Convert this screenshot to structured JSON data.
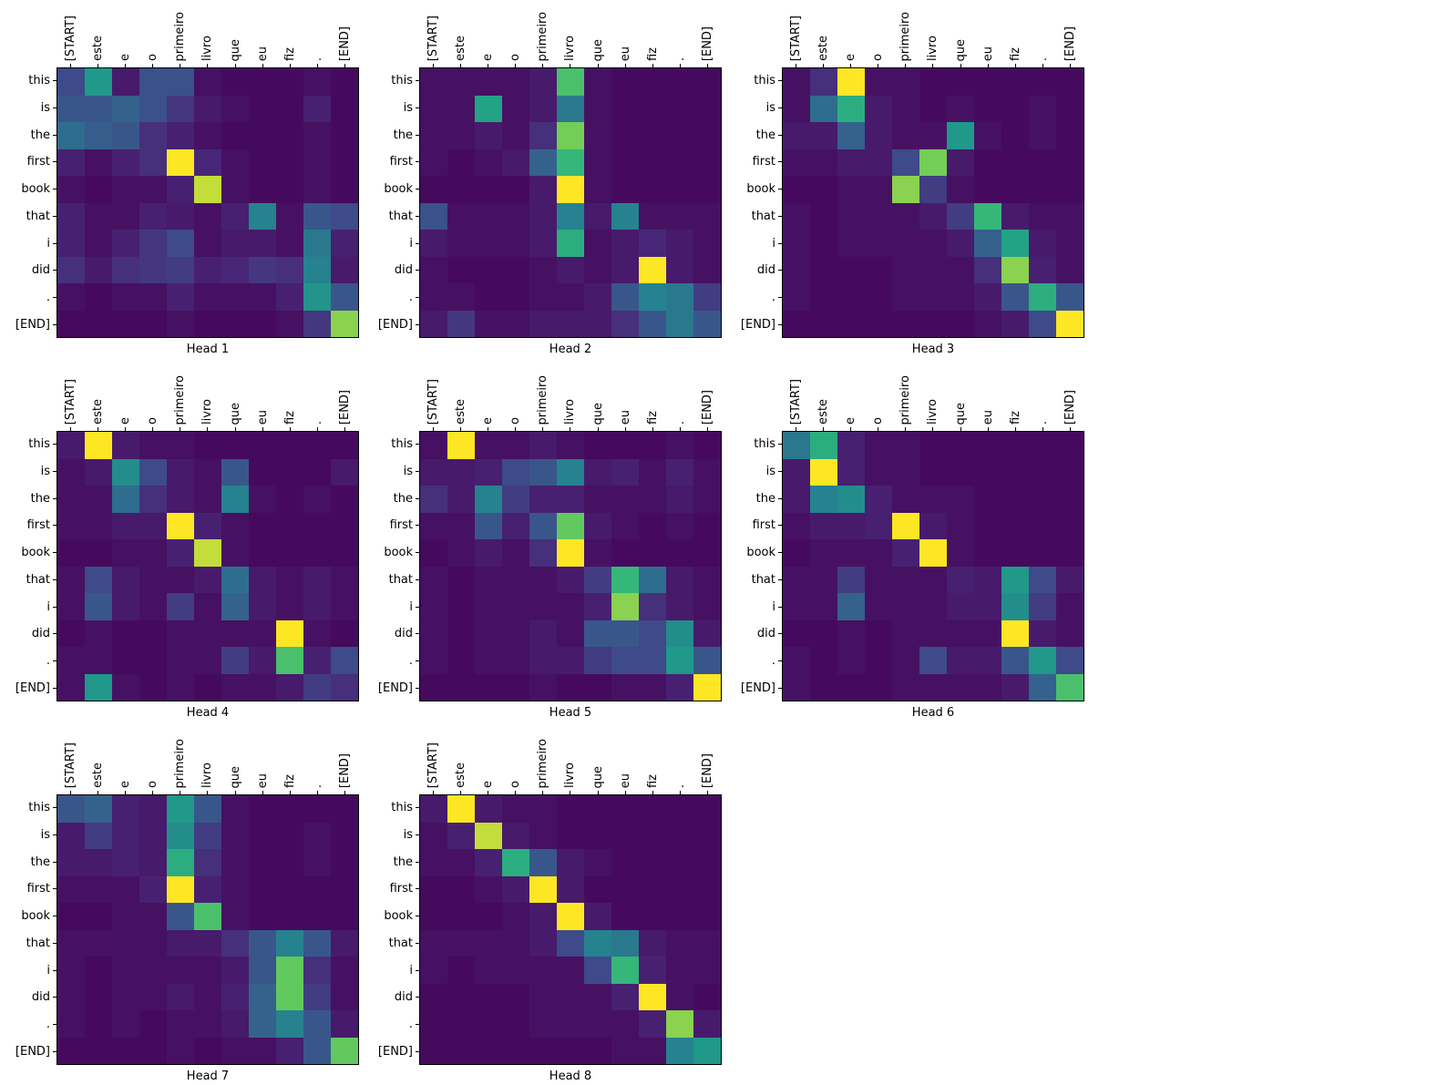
{
  "figure": {
    "background": "#ffffff",
    "axis_color": "#000000"
  },
  "chart_data": {
    "type": "heatmap",
    "subtype": "attention-heads-grid",
    "colormap": "viridis",
    "vmin": 0,
    "vmax": 1,
    "grid_rows": 2,
    "grid_cols": 4,
    "x_labels": [
      "[START]",
      "este",
      "e",
      "o",
      "primeiro",
      "livro",
      "que",
      "eu",
      "fiz",
      ".",
      "[END]"
    ],
    "y_labels": [
      "this",
      "is",
      "the",
      "first",
      "book",
      "that",
      "i",
      "did",
      ".",
      "[END]"
    ],
    "heads": [
      {
        "title": "Head 1",
        "values": [
          [
            0.25,
            0.6,
            0.08,
            0.28,
            0.28,
            0.05,
            0.03,
            0.03,
            0.03,
            0.05,
            0.03
          ],
          [
            0.3,
            0.3,
            0.35,
            0.28,
            0.18,
            0.08,
            0.05,
            0.03,
            0.03,
            0.1,
            0.03
          ],
          [
            0.4,
            0.33,
            0.3,
            0.15,
            0.1,
            0.05,
            0.03,
            0.03,
            0.03,
            0.05,
            0.03
          ],
          [
            0.1,
            0.05,
            0.1,
            0.15,
            1.0,
            0.12,
            0.05,
            0.03,
            0.03,
            0.05,
            0.03
          ],
          [
            0.05,
            0.03,
            0.05,
            0.05,
            0.1,
            0.95,
            0.05,
            0.03,
            0.03,
            0.05,
            0.03
          ],
          [
            0.1,
            0.05,
            0.05,
            0.1,
            0.08,
            0.05,
            0.1,
            0.5,
            0.05,
            0.3,
            0.25
          ],
          [
            0.1,
            0.05,
            0.1,
            0.18,
            0.25,
            0.05,
            0.08,
            0.08,
            0.05,
            0.45,
            0.1
          ],
          [
            0.15,
            0.08,
            0.15,
            0.18,
            0.2,
            0.1,
            0.12,
            0.18,
            0.15,
            0.5,
            0.08
          ],
          [
            0.05,
            0.03,
            0.05,
            0.05,
            0.1,
            0.05,
            0.05,
            0.05,
            0.1,
            0.58,
            0.3
          ],
          [
            0.03,
            0.03,
            0.03,
            0.03,
            0.05,
            0.03,
            0.03,
            0.03,
            0.05,
            0.18,
            0.9
          ]
        ]
      },
      {
        "title": "Head 2",
        "values": [
          [
            0.05,
            0.05,
            0.05,
            0.05,
            0.08,
            0.8,
            0.05,
            0.03,
            0.03,
            0.03,
            0.03
          ],
          [
            0.05,
            0.05,
            0.65,
            0.05,
            0.08,
            0.45,
            0.05,
            0.03,
            0.03,
            0.03,
            0.03
          ],
          [
            0.05,
            0.05,
            0.08,
            0.05,
            0.15,
            0.88,
            0.05,
            0.03,
            0.03,
            0.03,
            0.03
          ],
          [
            0.05,
            0.03,
            0.05,
            0.08,
            0.35,
            0.75,
            0.05,
            0.03,
            0.03,
            0.03,
            0.03
          ],
          [
            0.03,
            0.03,
            0.03,
            0.03,
            0.08,
            1.0,
            0.05,
            0.03,
            0.03,
            0.03,
            0.03
          ],
          [
            0.28,
            0.05,
            0.05,
            0.05,
            0.08,
            0.5,
            0.08,
            0.5,
            0.05,
            0.05,
            0.05
          ],
          [
            0.08,
            0.05,
            0.05,
            0.05,
            0.08,
            0.7,
            0.05,
            0.08,
            0.12,
            0.08,
            0.05
          ],
          [
            0.05,
            0.03,
            0.03,
            0.03,
            0.05,
            0.08,
            0.05,
            0.08,
            1.0,
            0.08,
            0.05
          ],
          [
            0.05,
            0.05,
            0.03,
            0.03,
            0.05,
            0.05,
            0.08,
            0.3,
            0.5,
            0.45,
            0.2
          ],
          [
            0.08,
            0.18,
            0.05,
            0.05,
            0.08,
            0.08,
            0.08,
            0.15,
            0.3,
            0.45,
            0.3
          ]
        ]
      },
      {
        "title": "Head 3",
        "values": [
          [
            0.05,
            0.15,
            1.0,
            0.05,
            0.05,
            0.03,
            0.03,
            0.03,
            0.03,
            0.03,
            0.03
          ],
          [
            0.05,
            0.4,
            0.7,
            0.08,
            0.05,
            0.03,
            0.05,
            0.03,
            0.03,
            0.05,
            0.03
          ],
          [
            0.08,
            0.08,
            0.35,
            0.08,
            0.05,
            0.05,
            0.6,
            0.05,
            0.03,
            0.05,
            0.03
          ],
          [
            0.05,
            0.05,
            0.08,
            0.08,
            0.25,
            0.88,
            0.08,
            0.03,
            0.03,
            0.03,
            0.03
          ],
          [
            0.03,
            0.03,
            0.05,
            0.05,
            0.9,
            0.2,
            0.05,
            0.03,
            0.03,
            0.03,
            0.03
          ],
          [
            0.05,
            0.03,
            0.05,
            0.05,
            0.05,
            0.08,
            0.2,
            0.75,
            0.08,
            0.05,
            0.05
          ],
          [
            0.05,
            0.03,
            0.05,
            0.05,
            0.05,
            0.05,
            0.08,
            0.35,
            0.65,
            0.08,
            0.05
          ],
          [
            0.05,
            0.03,
            0.03,
            0.03,
            0.05,
            0.05,
            0.05,
            0.15,
            0.9,
            0.1,
            0.05
          ],
          [
            0.05,
            0.03,
            0.03,
            0.03,
            0.05,
            0.05,
            0.05,
            0.08,
            0.3,
            0.7,
            0.3
          ],
          [
            0.03,
            0.03,
            0.03,
            0.03,
            0.03,
            0.03,
            0.03,
            0.05,
            0.08,
            0.25,
            1.0
          ]
        ]
      },
      {
        "title": "Head 4",
        "values": [
          [
            0.08,
            1.0,
            0.08,
            0.05,
            0.05,
            0.03,
            0.03,
            0.03,
            0.03,
            0.03,
            0.03
          ],
          [
            0.05,
            0.08,
            0.55,
            0.25,
            0.08,
            0.05,
            0.3,
            0.03,
            0.03,
            0.03,
            0.08
          ],
          [
            0.05,
            0.05,
            0.4,
            0.15,
            0.08,
            0.05,
            0.5,
            0.05,
            0.03,
            0.05,
            0.03
          ],
          [
            0.05,
            0.05,
            0.08,
            0.08,
            1.0,
            0.1,
            0.05,
            0.03,
            0.03,
            0.03,
            0.03
          ],
          [
            0.03,
            0.03,
            0.05,
            0.05,
            0.1,
            0.95,
            0.05,
            0.03,
            0.03,
            0.03,
            0.03
          ],
          [
            0.05,
            0.25,
            0.08,
            0.05,
            0.05,
            0.08,
            0.4,
            0.08,
            0.05,
            0.08,
            0.05
          ],
          [
            0.05,
            0.3,
            0.08,
            0.05,
            0.2,
            0.05,
            0.35,
            0.08,
            0.05,
            0.08,
            0.05
          ],
          [
            0.03,
            0.05,
            0.03,
            0.03,
            0.05,
            0.05,
            0.05,
            0.05,
            1.0,
            0.05,
            0.03
          ],
          [
            0.05,
            0.05,
            0.03,
            0.03,
            0.05,
            0.05,
            0.2,
            0.08,
            0.8,
            0.1,
            0.25
          ],
          [
            0.05,
            0.6,
            0.05,
            0.03,
            0.05,
            0.03,
            0.05,
            0.05,
            0.08,
            0.2,
            0.15
          ]
        ]
      },
      {
        "title": "Head 5",
        "values": [
          [
            0.05,
            1.0,
            0.05,
            0.05,
            0.08,
            0.05,
            0.03,
            0.03,
            0.03,
            0.05,
            0.03
          ],
          [
            0.08,
            0.08,
            0.1,
            0.25,
            0.3,
            0.5,
            0.08,
            0.1,
            0.05,
            0.1,
            0.05
          ],
          [
            0.15,
            0.08,
            0.5,
            0.2,
            0.1,
            0.1,
            0.05,
            0.05,
            0.05,
            0.08,
            0.05
          ],
          [
            0.05,
            0.05,
            0.3,
            0.1,
            0.3,
            0.85,
            0.08,
            0.05,
            0.03,
            0.05,
            0.03
          ],
          [
            0.03,
            0.05,
            0.08,
            0.05,
            0.15,
            1.0,
            0.05,
            0.03,
            0.03,
            0.03,
            0.03
          ],
          [
            0.05,
            0.03,
            0.05,
            0.05,
            0.05,
            0.08,
            0.2,
            0.75,
            0.4,
            0.08,
            0.05
          ],
          [
            0.05,
            0.03,
            0.05,
            0.05,
            0.05,
            0.05,
            0.1,
            0.9,
            0.15,
            0.08,
            0.05
          ],
          [
            0.05,
            0.03,
            0.05,
            0.05,
            0.08,
            0.05,
            0.3,
            0.3,
            0.25,
            0.55,
            0.08
          ],
          [
            0.05,
            0.03,
            0.05,
            0.05,
            0.08,
            0.08,
            0.2,
            0.25,
            0.25,
            0.6,
            0.3
          ],
          [
            0.03,
            0.03,
            0.03,
            0.03,
            0.05,
            0.03,
            0.03,
            0.05,
            0.05,
            0.1,
            1.0
          ]
        ]
      },
      {
        "title": "Head 6",
        "values": [
          [
            0.45,
            0.7,
            0.1,
            0.05,
            0.05,
            0.03,
            0.03,
            0.03,
            0.03,
            0.03,
            0.03
          ],
          [
            0.08,
            1.0,
            0.1,
            0.05,
            0.05,
            0.03,
            0.03,
            0.03,
            0.03,
            0.03,
            0.03
          ],
          [
            0.08,
            0.5,
            0.55,
            0.1,
            0.05,
            0.05,
            0.05,
            0.03,
            0.03,
            0.03,
            0.03
          ],
          [
            0.05,
            0.08,
            0.08,
            0.1,
            1.0,
            0.08,
            0.05,
            0.03,
            0.03,
            0.03,
            0.03
          ],
          [
            0.03,
            0.05,
            0.05,
            0.05,
            0.1,
            1.0,
            0.05,
            0.03,
            0.03,
            0.03,
            0.03
          ],
          [
            0.05,
            0.05,
            0.2,
            0.05,
            0.05,
            0.05,
            0.1,
            0.08,
            0.6,
            0.25,
            0.08
          ],
          [
            0.05,
            0.05,
            0.35,
            0.05,
            0.05,
            0.05,
            0.08,
            0.08,
            0.55,
            0.2,
            0.05
          ],
          [
            0.03,
            0.03,
            0.05,
            0.03,
            0.05,
            0.05,
            0.05,
            0.05,
            1.0,
            0.08,
            0.05
          ],
          [
            0.05,
            0.03,
            0.05,
            0.03,
            0.05,
            0.25,
            0.08,
            0.08,
            0.3,
            0.6,
            0.25
          ],
          [
            0.05,
            0.03,
            0.03,
            0.03,
            0.05,
            0.05,
            0.05,
            0.05,
            0.08,
            0.35,
            0.8
          ]
        ]
      },
      {
        "title": "Head 7",
        "values": [
          [
            0.3,
            0.35,
            0.1,
            0.08,
            0.6,
            0.3,
            0.05,
            0.03,
            0.03,
            0.03,
            0.03
          ],
          [
            0.08,
            0.2,
            0.1,
            0.08,
            0.55,
            0.2,
            0.05,
            0.03,
            0.03,
            0.05,
            0.03
          ],
          [
            0.08,
            0.08,
            0.1,
            0.08,
            0.7,
            0.15,
            0.05,
            0.03,
            0.03,
            0.05,
            0.03
          ],
          [
            0.05,
            0.05,
            0.05,
            0.1,
            1.0,
            0.1,
            0.05,
            0.03,
            0.03,
            0.03,
            0.03
          ],
          [
            0.03,
            0.03,
            0.05,
            0.05,
            0.3,
            0.8,
            0.05,
            0.03,
            0.03,
            0.03,
            0.03
          ],
          [
            0.05,
            0.05,
            0.05,
            0.05,
            0.08,
            0.08,
            0.15,
            0.3,
            0.5,
            0.3,
            0.08
          ],
          [
            0.05,
            0.03,
            0.05,
            0.05,
            0.05,
            0.05,
            0.08,
            0.3,
            0.85,
            0.15,
            0.05
          ],
          [
            0.05,
            0.03,
            0.05,
            0.05,
            0.08,
            0.05,
            0.1,
            0.35,
            0.85,
            0.2,
            0.05
          ],
          [
            0.05,
            0.03,
            0.05,
            0.03,
            0.05,
            0.05,
            0.08,
            0.35,
            0.5,
            0.3,
            0.08
          ],
          [
            0.03,
            0.03,
            0.03,
            0.03,
            0.05,
            0.03,
            0.05,
            0.05,
            0.1,
            0.3,
            0.85
          ]
        ]
      },
      {
        "title": "Head 8",
        "values": [
          [
            0.08,
            1.0,
            0.08,
            0.05,
            0.05,
            0.03,
            0.03,
            0.03,
            0.03,
            0.03,
            0.03
          ],
          [
            0.05,
            0.1,
            0.95,
            0.08,
            0.05,
            0.03,
            0.03,
            0.03,
            0.03,
            0.03,
            0.03
          ],
          [
            0.05,
            0.05,
            0.1,
            0.7,
            0.3,
            0.08,
            0.05,
            0.03,
            0.03,
            0.03,
            0.03
          ],
          [
            0.03,
            0.03,
            0.05,
            0.08,
            1.0,
            0.08,
            0.03,
            0.03,
            0.03,
            0.03,
            0.03
          ],
          [
            0.03,
            0.03,
            0.03,
            0.05,
            0.08,
            1.0,
            0.08,
            0.03,
            0.03,
            0.03,
            0.03
          ],
          [
            0.05,
            0.05,
            0.05,
            0.05,
            0.08,
            0.25,
            0.5,
            0.45,
            0.08,
            0.05,
            0.05
          ],
          [
            0.05,
            0.03,
            0.05,
            0.05,
            0.05,
            0.05,
            0.25,
            0.75,
            0.1,
            0.05,
            0.05
          ],
          [
            0.03,
            0.03,
            0.03,
            0.03,
            0.05,
            0.05,
            0.05,
            0.1,
            1.0,
            0.05,
            0.03
          ],
          [
            0.03,
            0.03,
            0.03,
            0.03,
            0.05,
            0.05,
            0.05,
            0.05,
            0.1,
            0.9,
            0.08
          ],
          [
            0.03,
            0.03,
            0.03,
            0.03,
            0.03,
            0.03,
            0.03,
            0.05,
            0.05,
            0.5,
            0.6
          ]
        ]
      }
    ]
  }
}
